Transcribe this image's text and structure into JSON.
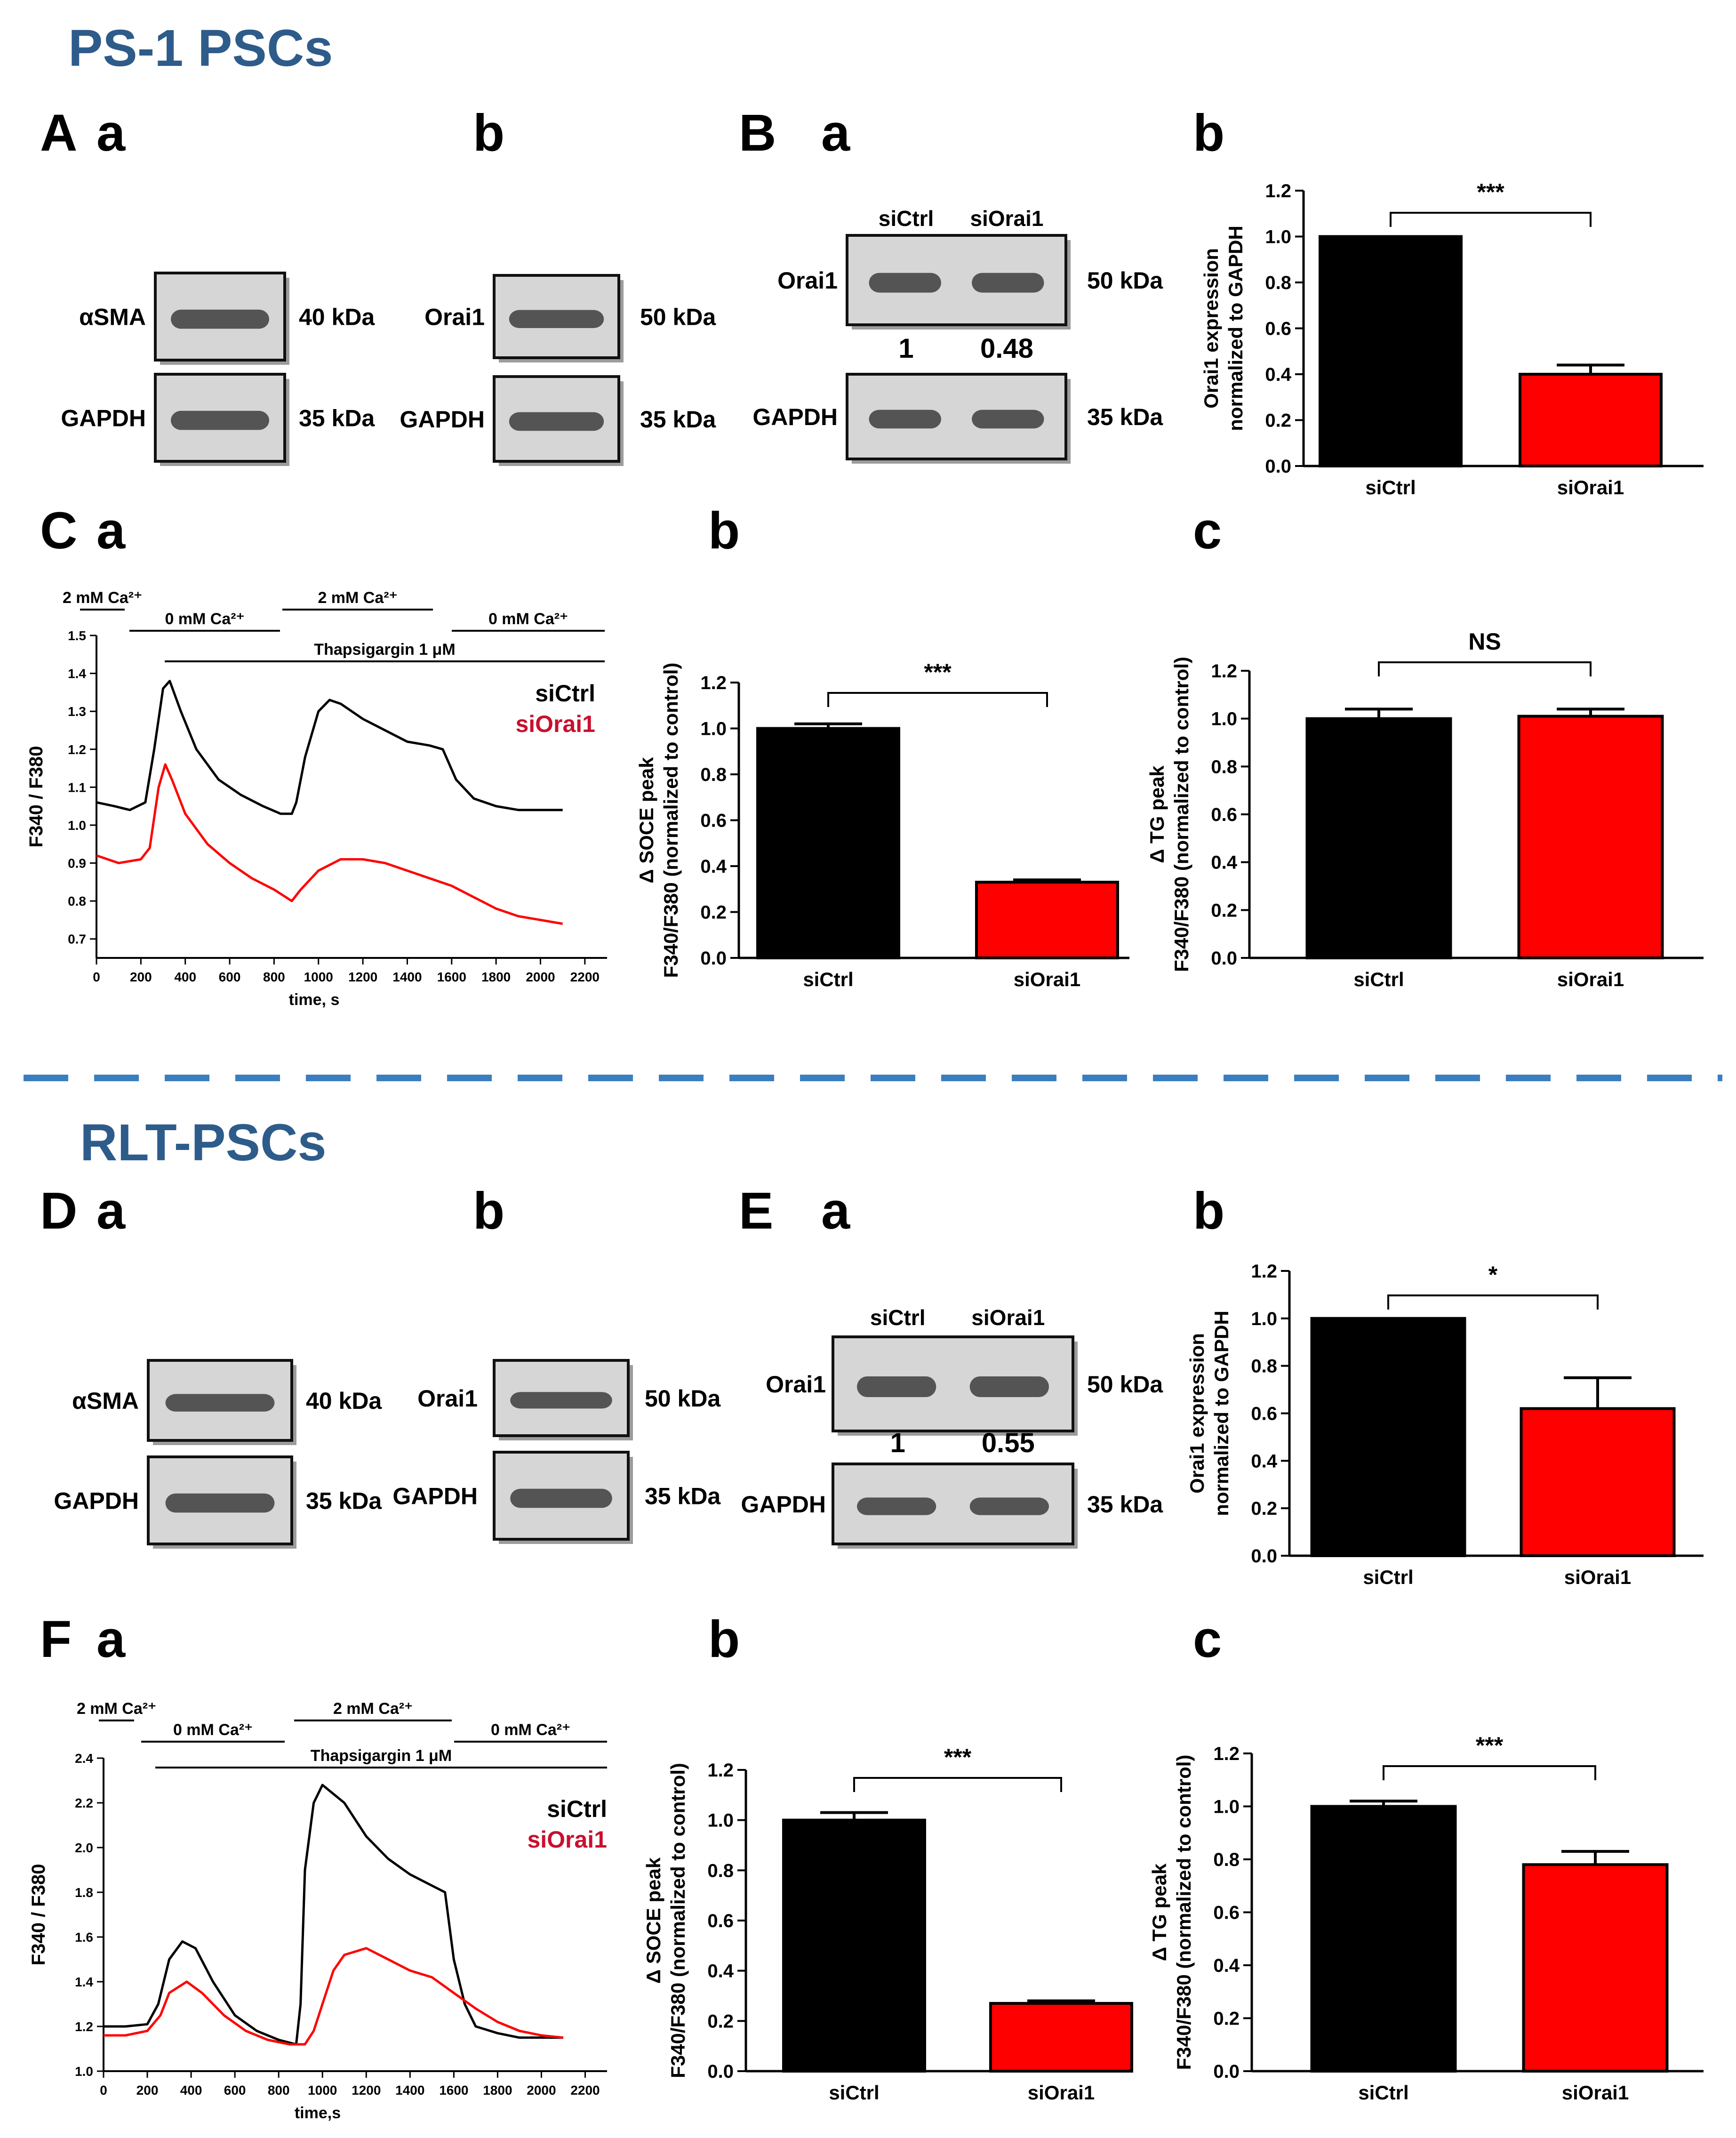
{
  "sections": [
    {
      "title": "PS-1 PSCs",
      "color": "#2e5c8a"
    },
    {
      "title": "RLT-PSCs",
      "color": "#2e5c8a"
    }
  ],
  "panel_letters": {
    "A": "A",
    "a": "a",
    "b": "b",
    "c": "c",
    "B": "B",
    "C": "C",
    "D": "D",
    "E": "E",
    "F": "F"
  },
  "blots": {
    "A_a": {
      "rows": [
        {
          "protein": "αSMA",
          "kda": "40 kDa"
        },
        {
          "protein": "GAPDH",
          "kda": "35 kDa"
        }
      ]
    },
    "A_b": {
      "rows": [
        {
          "protein": "Orai1",
          "kda": "50 kDa"
        },
        {
          "protein": "GAPDH",
          "kda": "35 kDa"
        }
      ]
    },
    "B_a": {
      "lanes": [
        "siCtrl",
        "siOrai1"
      ],
      "rows": [
        {
          "protein": "Orai1",
          "kda": "50 kDa"
        },
        {
          "protein": "GAPDH",
          "kda": "35 kDa"
        }
      ],
      "quant": [
        "1",
        "0.48"
      ]
    },
    "D_a": {
      "rows": [
        {
          "protein": "αSMA",
          "kda": "40 kDa"
        },
        {
          "protein": "GAPDH",
          "kda": "35 kDa"
        }
      ]
    },
    "D_b": {
      "rows": [
        {
          "protein": "Orai1",
          "kda": "50 kDa"
        },
        {
          "protein": "GAPDH",
          "kda": "35 kDa"
        }
      ]
    },
    "E_a": {
      "lanes": [
        "siCtrl",
        "siOrai1"
      ],
      "rows": [
        {
          "protein": "Orai1",
          "kda": "50 kDa"
        },
        {
          "protein": "GAPDH",
          "kda": "35 kDa"
        }
      ],
      "quant": [
        "1",
        "0.55"
      ]
    }
  },
  "colors": {
    "ctrl": "#000000",
    "orai": "#ff0000",
    "orai_text": "#c8102e",
    "divider": "#3a7ec0"
  },
  "chart_data": [
    {
      "id": "B_b",
      "type": "bar",
      "categories": [
        "siCtrl",
        "siOrai1"
      ],
      "values": [
        1.0,
        0.4
      ],
      "errors": [
        0,
        0.04
      ],
      "ylim": [
        0,
        1.2
      ],
      "ticks": [
        "0.0",
        "0.2",
        "0.4",
        "0.6",
        "0.8",
        "1.0",
        "1.2"
      ],
      "ylabel": [
        "Orai1 expression",
        "normalized to GAPDH"
      ],
      "significance": "***"
    },
    {
      "id": "C_a",
      "type": "line",
      "xlim": [
        0,
        2300
      ],
      "ylim": [
        0.65,
        1.5
      ],
      "xticks": [
        "0",
        "200",
        "400",
        "600",
        "800",
        "1000",
        "1200",
        "1400",
        "1600",
        "1800",
        "2000",
        "2200"
      ],
      "yticks": [
        "0.7",
        "0.8",
        "0.9",
        "1.0",
        "1.1",
        "1.2",
        "1.3",
        "1.4",
        "1.5"
      ],
      "xlabel": "time, s",
      "ylabel": "F340 / F380",
      "annotations": {
        "ca_2mm": "2 mM Ca²⁺",
        "ca_0mm": "0 mM Ca²⁺",
        "tg": "Thapsigargin 1 μM"
      },
      "series": [
        {
          "name": "siCtrl",
          "x": [
            0,
            80,
            150,
            220,
            260,
            300,
            330,
            380,
            450,
            550,
            650,
            750,
            830,
            880,
            900,
            940,
            1000,
            1050,
            1100,
            1200,
            1300,
            1400,
            1500,
            1560,
            1620,
            1700,
            1800,
            1900,
            2000,
            2100
          ],
          "y": [
            1.06,
            1.05,
            1.04,
            1.06,
            1.2,
            1.36,
            1.38,
            1.3,
            1.2,
            1.12,
            1.08,
            1.05,
            1.03,
            1.03,
            1.06,
            1.18,
            1.3,
            1.33,
            1.32,
            1.28,
            1.25,
            1.22,
            1.21,
            1.2,
            1.12,
            1.07,
            1.05,
            1.04,
            1.04,
            1.04
          ]
        },
        {
          "name": "siOrai1",
          "x": [
            0,
            100,
            200,
            240,
            280,
            310,
            340,
            400,
            500,
            600,
            700,
            800,
            880,
            920,
            1000,
            1100,
            1200,
            1300,
            1400,
            1500,
            1600,
            1700,
            1800,
            1900,
            2000,
            2100
          ],
          "y": [
            0.92,
            0.9,
            0.91,
            0.94,
            1.1,
            1.16,
            1.12,
            1.03,
            0.95,
            0.9,
            0.86,
            0.83,
            0.8,
            0.83,
            0.88,
            0.91,
            0.91,
            0.9,
            0.88,
            0.86,
            0.84,
            0.81,
            0.78,
            0.76,
            0.75,
            0.74
          ]
        }
      ]
    },
    {
      "id": "C_b",
      "type": "bar",
      "categories": [
        "siCtrl",
        "siOrai1"
      ],
      "values": [
        1.0,
        0.33
      ],
      "errors": [
        0.02,
        0.01
      ],
      "ylim": [
        0,
        1.2
      ],
      "ticks": [
        "0.0",
        "0.2",
        "0.4",
        "0.6",
        "0.8",
        "1.0",
        "1.2"
      ],
      "ylabel": [
        "Δ SOCE peak",
        "F340/F380 (normalized to control)"
      ],
      "significance": "***"
    },
    {
      "id": "C_c",
      "type": "bar",
      "categories": [
        "siCtrl",
        "siOrai1"
      ],
      "values": [
        1.0,
        1.01
      ],
      "errors": [
        0.04,
        0.03
      ],
      "ylim": [
        0,
        1.2
      ],
      "ticks": [
        "0.0",
        "0.2",
        "0.4",
        "0.6",
        "0.8",
        "1.0",
        "1.2"
      ],
      "ylabel": [
        "Δ TG peak",
        "F340/F380 (normalized to control)"
      ],
      "significance": "NS"
    },
    {
      "id": "E_b",
      "type": "bar",
      "categories": [
        "siCtrl",
        "siOrai1"
      ],
      "values": [
        1.0,
        0.62
      ],
      "errors": [
        0,
        0.13
      ],
      "ylim": [
        0,
        1.2
      ],
      "ticks": [
        "0.0",
        "0.2",
        "0.4",
        "0.6",
        "0.8",
        "1.0",
        "1.2"
      ],
      "ylabel": [
        "Orai1 expression",
        "normalized to GAPDH"
      ],
      "significance": "*"
    },
    {
      "id": "F_a",
      "type": "line",
      "xlim": [
        0,
        2300
      ],
      "ylim": [
        1.0,
        2.4
      ],
      "xticks": [
        "0",
        "200",
        "400",
        "600",
        "800",
        "1000",
        "1200",
        "1400",
        "1600",
        "1800",
        "2000",
        "2200"
      ],
      "yticks": [
        "1.0",
        "1.2",
        "1.4",
        "1.6",
        "1.8",
        "2.0",
        "2.2",
        "2.4"
      ],
      "xlabel": "time,s",
      "ylabel": "F340 / F380",
      "annotations": {
        "ca_2mm": "2 mM Ca²⁺",
        "ca_0mm": "0 mM Ca²⁺",
        "tg": "Thapsigargin 1 μM"
      },
      "series": [
        {
          "name": "siCtrl",
          "x": [
            0,
            100,
            200,
            250,
            300,
            360,
            420,
            500,
            600,
            700,
            800,
            880,
            900,
            920,
            960,
            1000,
            1100,
            1200,
            1300,
            1400,
            1500,
            1560,
            1600,
            1650,
            1700,
            1800,
            1900,
            2000,
            2100
          ],
          "y": [
            1.2,
            1.2,
            1.21,
            1.3,
            1.5,
            1.58,
            1.55,
            1.4,
            1.25,
            1.18,
            1.14,
            1.12,
            1.3,
            1.9,
            2.2,
            2.28,
            2.2,
            2.05,
            1.95,
            1.88,
            1.83,
            1.8,
            1.5,
            1.3,
            1.2,
            1.17,
            1.15,
            1.15,
            1.15
          ]
        },
        {
          "name": "siOrai1",
          "x": [
            0,
            100,
            200,
            260,
            300,
            380,
            450,
            550,
            650,
            750,
            850,
            920,
            960,
            1000,
            1050,
            1100,
            1200,
            1300,
            1400,
            1500,
            1600,
            1700,
            1800,
            1900,
            2000,
            2100
          ],
          "y": [
            1.16,
            1.16,
            1.18,
            1.25,
            1.35,
            1.4,
            1.35,
            1.25,
            1.18,
            1.14,
            1.12,
            1.12,
            1.18,
            1.3,
            1.45,
            1.52,
            1.55,
            1.5,
            1.45,
            1.42,
            1.35,
            1.28,
            1.22,
            1.18,
            1.16,
            1.15
          ]
        }
      ]
    },
    {
      "id": "F_b",
      "type": "bar",
      "categories": [
        "siCtrl",
        "siOrai1"
      ],
      "values": [
        1.0,
        0.27
      ],
      "errors": [
        0.03,
        0.01
      ],
      "ylim": [
        0,
        1.2
      ],
      "ticks": [
        "0.0",
        "0.2",
        "0.4",
        "0.6",
        "0.8",
        "1.0",
        "1.2"
      ],
      "ylabel": [
        "Δ SOCE peak",
        "F340/F380 (normalized to control)"
      ],
      "significance": "***"
    },
    {
      "id": "F_c",
      "type": "bar",
      "categories": [
        "siCtrl",
        "siOrai1"
      ],
      "values": [
        1.0,
        0.78
      ],
      "errors": [
        0.02,
        0.05
      ],
      "ylim": [
        0,
        1.2
      ],
      "ticks": [
        "0.0",
        "0.2",
        "0.4",
        "0.6",
        "0.8",
        "1.0",
        "1.2"
      ],
      "ylabel": [
        "Δ TG peak",
        "F340/F380 (normalized to control)"
      ],
      "significance": "***"
    }
  ]
}
